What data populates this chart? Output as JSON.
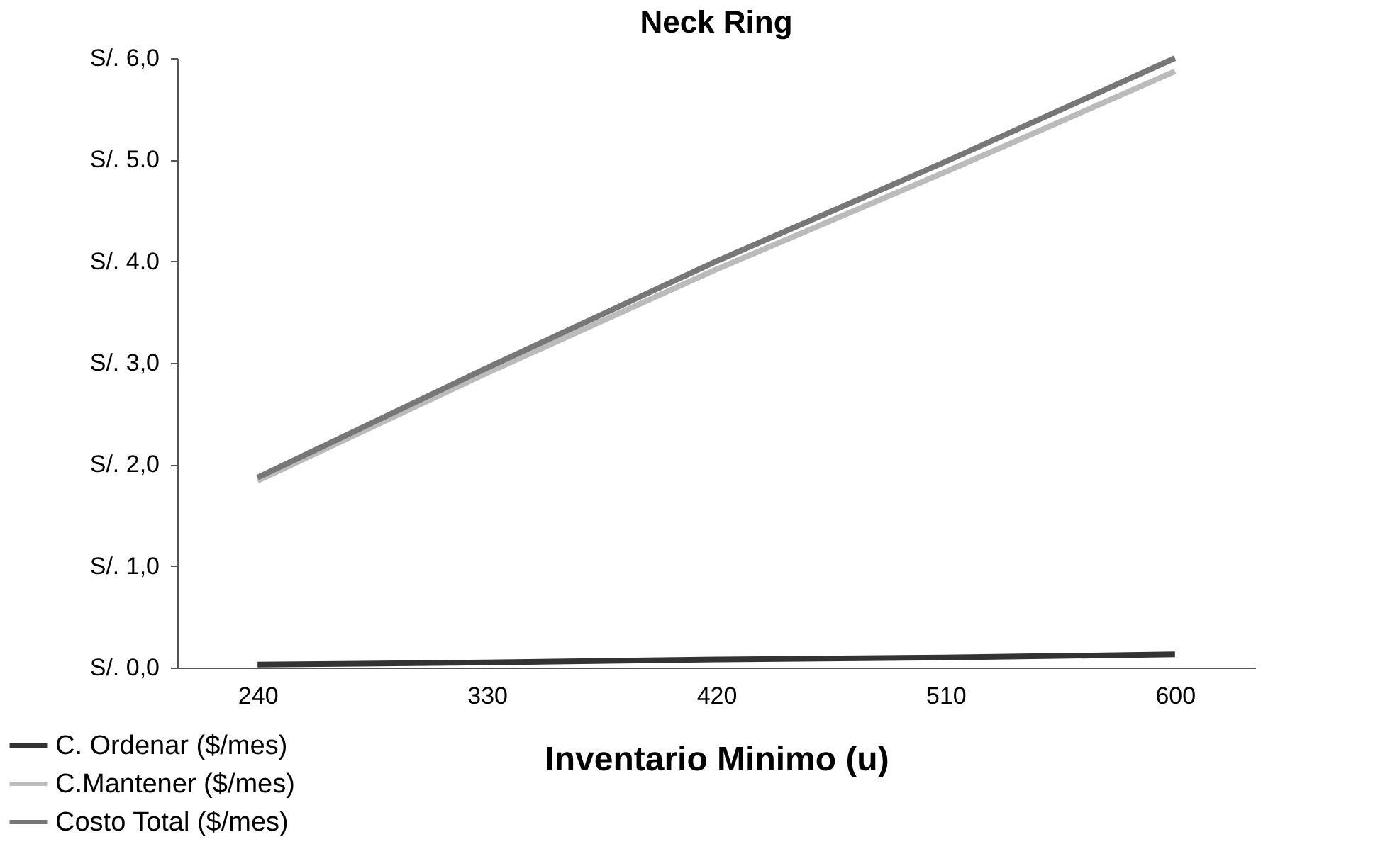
{
  "chart_data": {
    "type": "line",
    "title": "Neck Ring",
    "xlabel": "Inventario Minimo (u)",
    "categories": [
      "240",
      "330",
      "420",
      "510",
      "600"
    ],
    "series": [
      {
        "name": "C. Ordenar ($/mes)",
        "color": "#333333",
        "values": [
          0.03,
          0.05,
          0.08,
          0.1,
          0.13
        ]
      },
      {
        "name": "C.Mantener ($/mes)",
        "color": "#bbbbbb",
        "values": [
          1.84,
          2.9,
          3.92,
          4.88,
          5.87
        ]
      },
      {
        "name": "Costo Total ($/mes)",
        "color": "#777777",
        "values": [
          1.87,
          2.95,
          4.0,
          4.98,
          6.0
        ]
      }
    ],
    "ylim": [
      0,
      6
    ],
    "yticks": [
      {
        "value": 0,
        "label": "S/. 0,0"
      },
      {
        "value": 1,
        "label": "S/. 1,0"
      },
      {
        "value": 2,
        "label": "S/. 2,0"
      },
      {
        "value": 3,
        "label": "S/. 3,0"
      },
      {
        "value": 4,
        "label": "S/. 4.0"
      },
      {
        "value": 5,
        "label": "S/. 5.0"
      },
      {
        "value": 6,
        "label": "S/. 6,0"
      }
    ],
    "grid": false,
    "legend": "bottom left",
    "marker": "none",
    "line_style": "solid"
  }
}
